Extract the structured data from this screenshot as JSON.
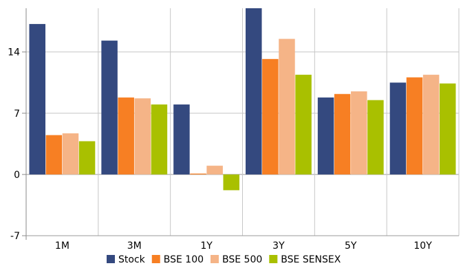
{
  "chart_data": {
    "type": "bar",
    "categories": [
      "1M",
      "3M",
      "1Y",
      "3Y",
      "5Y",
      "10Y"
    ],
    "series": [
      {
        "name": "Stock",
        "color": "#34497f",
        "values": [
          17.2,
          15.3,
          8.0,
          19.0,
          8.8,
          10.5
        ]
      },
      {
        "name": "BSE 100",
        "color": "#f77f23",
        "values": [
          4.5,
          8.8,
          0.1,
          13.2,
          9.2,
          11.1
        ]
      },
      {
        "name": "BSE 500",
        "color": "#f5b487",
        "values": [
          4.7,
          8.7,
          1.0,
          15.5,
          9.5,
          11.4
        ]
      },
      {
        "name": "BSE SENSEX",
        "color": "#a9c000",
        "values": [
          3.8,
          8.0,
          -1.8,
          11.4,
          8.5,
          10.4
        ]
      }
    ],
    "y_ticks": [
      -7,
      0,
      7,
      14
    ],
    "ylim": [
      -7,
      19
    ],
    "grid": true,
    "legend_position": "bottom"
  }
}
